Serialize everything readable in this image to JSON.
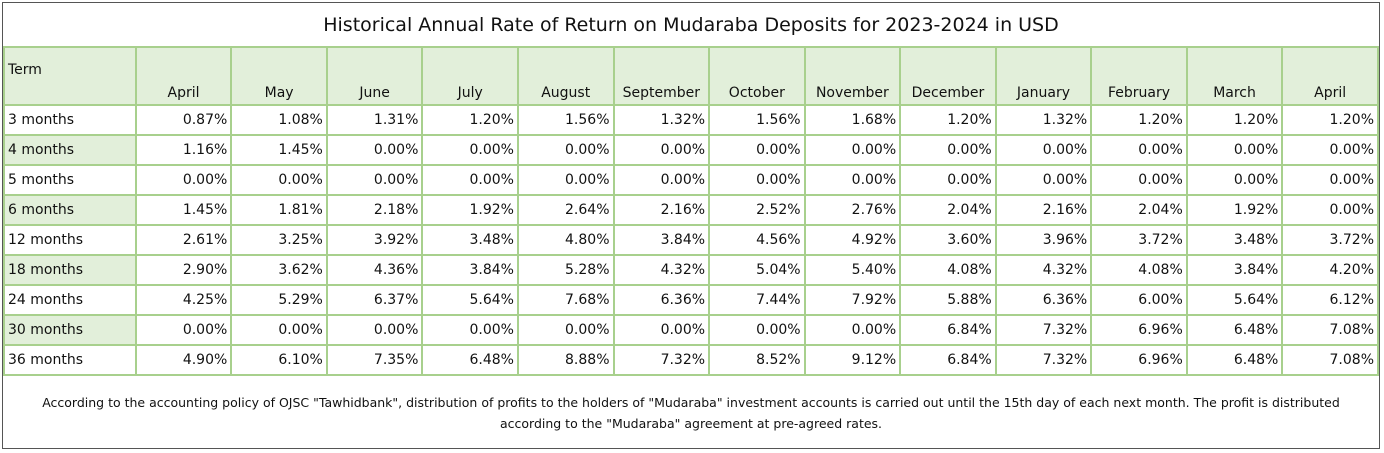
{
  "title": "Historical Annual Rate of Return on Mudaraba Deposits for 2023-2024 in USD",
  "table": {
    "term_header": "Term",
    "months": [
      "April",
      "May",
      "June",
      "July",
      "August",
      "September",
      "October",
      "November",
      "December",
      "January",
      "February",
      "March",
      "April"
    ],
    "rows": [
      {
        "term": "3 months",
        "values": [
          "0.87%",
          "1.08%",
          "1.31%",
          "1.20%",
          "1.56%",
          "1.32%",
          "1.56%",
          "1.68%",
          "1.20%",
          "1.32%",
          "1.20%",
          "1.20%",
          "1.20%"
        ]
      },
      {
        "term": "4 months",
        "values": [
          "1.16%",
          "1.45%",
          "0.00%",
          "0.00%",
          "0.00%",
          "0.00%",
          "0.00%",
          "0.00%",
          "0.00%",
          "0.00%",
          "0.00%",
          "0.00%",
          "0.00%"
        ]
      },
      {
        "term": "5 months",
        "values": [
          "0.00%",
          "0.00%",
          "0.00%",
          "0.00%",
          "0.00%",
          "0.00%",
          "0.00%",
          "0.00%",
          "0.00%",
          "0.00%",
          "0.00%",
          "0.00%",
          "0.00%"
        ]
      },
      {
        "term": "6 months",
        "values": [
          "1.45%",
          "1.81%",
          "2.18%",
          "1.92%",
          "2.64%",
          "2.16%",
          "2.52%",
          "2.76%",
          "2.04%",
          "2.16%",
          "2.04%",
          "1.92%",
          "0.00%"
        ]
      },
      {
        "term": "12 months",
        "values": [
          "2.61%",
          "3.25%",
          "3.92%",
          "3.48%",
          "4.80%",
          "3.84%",
          "4.56%",
          "4.92%",
          "3.60%",
          "3.96%",
          "3.72%",
          "3.48%",
          "3.72%"
        ]
      },
      {
        "term": "18 months",
        "values": [
          "2.90%",
          "3.62%",
          "4.36%",
          "3.84%",
          "5.28%",
          "4.32%",
          "5.04%",
          "5.40%",
          "4.08%",
          "4.32%",
          "4.08%",
          "3.84%",
          "4.20%"
        ]
      },
      {
        "term": "24 months",
        "values": [
          "4.25%",
          "5.29%",
          "6.37%",
          "5.64%",
          "7.68%",
          "6.36%",
          "7.44%",
          "7.92%",
          "5.88%",
          "6.36%",
          "6.00%",
          "5.64%",
          "6.12%"
        ]
      },
      {
        "term": "30 months",
        "values": [
          "0.00%",
          "0.00%",
          "0.00%",
          "0.00%",
          "0.00%",
          "0.00%",
          "0.00%",
          "0.00%",
          "6.84%",
          "7.32%",
          "6.96%",
          "6.48%",
          "7.08%"
        ]
      },
      {
        "term": "36 months",
        "values": [
          "4.90%",
          "6.10%",
          "7.35%",
          "6.48%",
          "8.88%",
          "7.32%",
          "8.52%",
          "9.12%",
          "6.84%",
          "7.32%",
          "6.96%",
          "6.48%",
          "7.08%"
        ]
      }
    ]
  },
  "note": "According to the accounting policy of OJSC \"Tawhidbank\", distribution of profits to the holders of \"Mudaraba\" investment accounts is carried out until the 15th day of each next month. The profit is distributed according to the \"Mudaraba\" agreement at pre-agreed rates.",
  "colors": {
    "header_fill": "#e2efda",
    "grid_border": "#a8d08d"
  }
}
